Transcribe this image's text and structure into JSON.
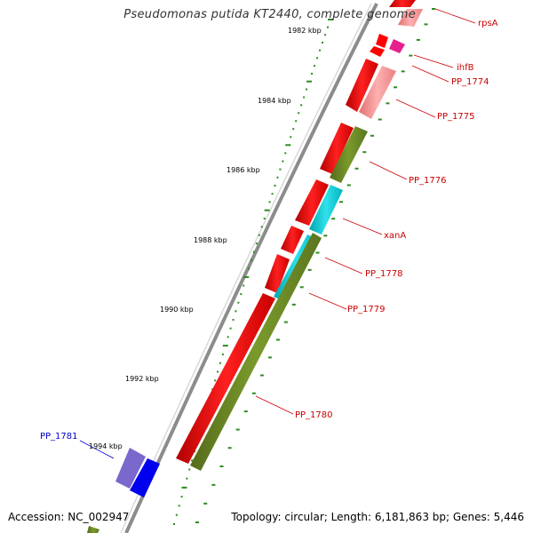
{
  "title": "Pseudomonas putida KT2440, complete genome",
  "footer": {
    "accession": "Accession: NC_002947",
    "stats": "Topology: circular; Length: 6,181,863 bp; Genes: 5,446"
  },
  "colors": {
    "backbone": "#8c8c8c",
    "ticks": "#2e8b22",
    "red_gene": "#ff0000",
    "pink_gene": "#f08a8a",
    "magenta_gene": "#e6208c",
    "olive_gene": "#6b8e23",
    "cyan_gene": "#00c8d2",
    "blue_gene": "#0000ee",
    "lavender_gene": "#7b68cc",
    "label_red": "#cc0000",
    "label_blue": "#0000cc"
  },
  "scale": {
    "ticks": [
      "1982 kbp",
      "1984 kbp",
      "1986 kbp",
      "1988 kbp",
      "1990 kbp",
      "1992 kbp",
      "1994 kbp"
    ]
  },
  "genes": [
    {
      "id": "rpsA",
      "label": "rpsA",
      "color": "red"
    },
    {
      "id": "ihfB",
      "label": "ihfB",
      "color": "red"
    },
    {
      "id": "PP_1774",
      "label": "PP_1774",
      "color": "red"
    },
    {
      "id": "PP_1775",
      "label": "PP_1775",
      "color": "red"
    },
    {
      "id": "PP_1776",
      "label": "PP_1776",
      "color": "red"
    },
    {
      "id": "xanA",
      "label": "xanA",
      "color": "red"
    },
    {
      "id": "PP_1778",
      "label": "PP_1778",
      "color": "red"
    },
    {
      "id": "PP_1779",
      "label": "PP_1779",
      "color": "red"
    },
    {
      "id": "PP_1780",
      "label": "PP_1780",
      "color": "red"
    },
    {
      "id": "PP_1781",
      "label": "PP_1781",
      "color": "blue"
    }
  ]
}
